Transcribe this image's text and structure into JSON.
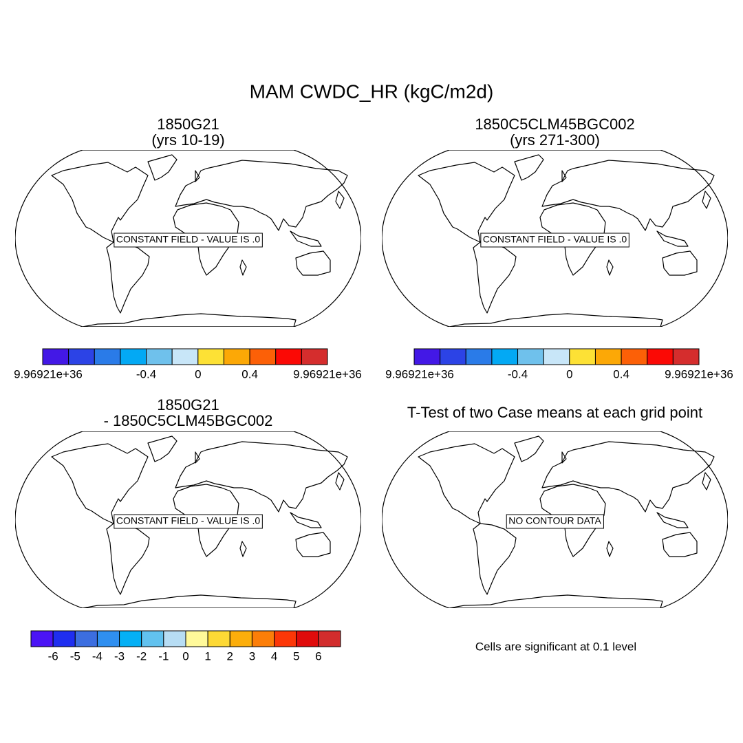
{
  "title": "MAM CWDC_HR (kgC/m2d)",
  "panels": [
    {
      "title": [
        "1850G21",
        "(yrs 10-19)"
      ],
      "message": "CONSTANT FIELD - VALUE IS .0"
    },
    {
      "title": [
        "1850C5CLM45BGC002",
        "(yrs 271-300)"
      ],
      "message": "CONSTANT FIELD - VALUE IS .0"
    },
    {
      "title": [
        "1850G21",
        "- 1850C5CLM45BGC002"
      ],
      "message": "CONSTANT FIELD - VALUE IS .0"
    },
    {
      "title": [
        "T-Test of two Case means at each grid point"
      ],
      "message": "NO CONTOUR DATA"
    }
  ],
  "colorbars": [
    {
      "colors": [
        "#4318e6",
        "#2c43e6",
        "#2a7be8",
        "#03a9f4",
        "#6fc1ec",
        "#c8e6f8",
        "#fde135",
        "#fca806",
        "#fc6007",
        "#fb0905",
        "#d52d2d"
      ],
      "labels": [
        "9.96921e+36",
        null,
        null,
        null,
        "-0.4",
        null,
        "0",
        null,
        "0.4",
        null,
        null,
        "9.96921e+36"
      ]
    },
    {
      "colors": [
        "#4318e6",
        "#2c43e6",
        "#2a7be8",
        "#03a9f4",
        "#6fc1ec",
        "#c8e6f8",
        "#fde135",
        "#fca806",
        "#fc6007",
        "#fb0905",
        "#d52d2d"
      ],
      "labels": [
        "9.96921e+36",
        null,
        null,
        null,
        "-0.4",
        null,
        "0",
        null,
        "0.4",
        null,
        null,
        "9.96921e+36"
      ]
    },
    {
      "colors": [
        "#4b14f5",
        "#1f2ef0",
        "#3c6ee0",
        "#2f8ff0",
        "#05b0f5",
        "#62c2ef",
        "#b7ddf4",
        "#fff99a",
        "#fdd935",
        "#fcae0b",
        "#fc7e08",
        "#fc3707",
        "#e00b0b",
        "#d22d2d"
      ],
      "labels": [
        null,
        "-6",
        "-5",
        "-4",
        "-3",
        "-2",
        "-1",
        "0",
        "1",
        "2",
        "3",
        "4",
        "5",
        "6",
        null
      ]
    }
  ],
  "caption": "Cells are significant at 0.1 level"
}
